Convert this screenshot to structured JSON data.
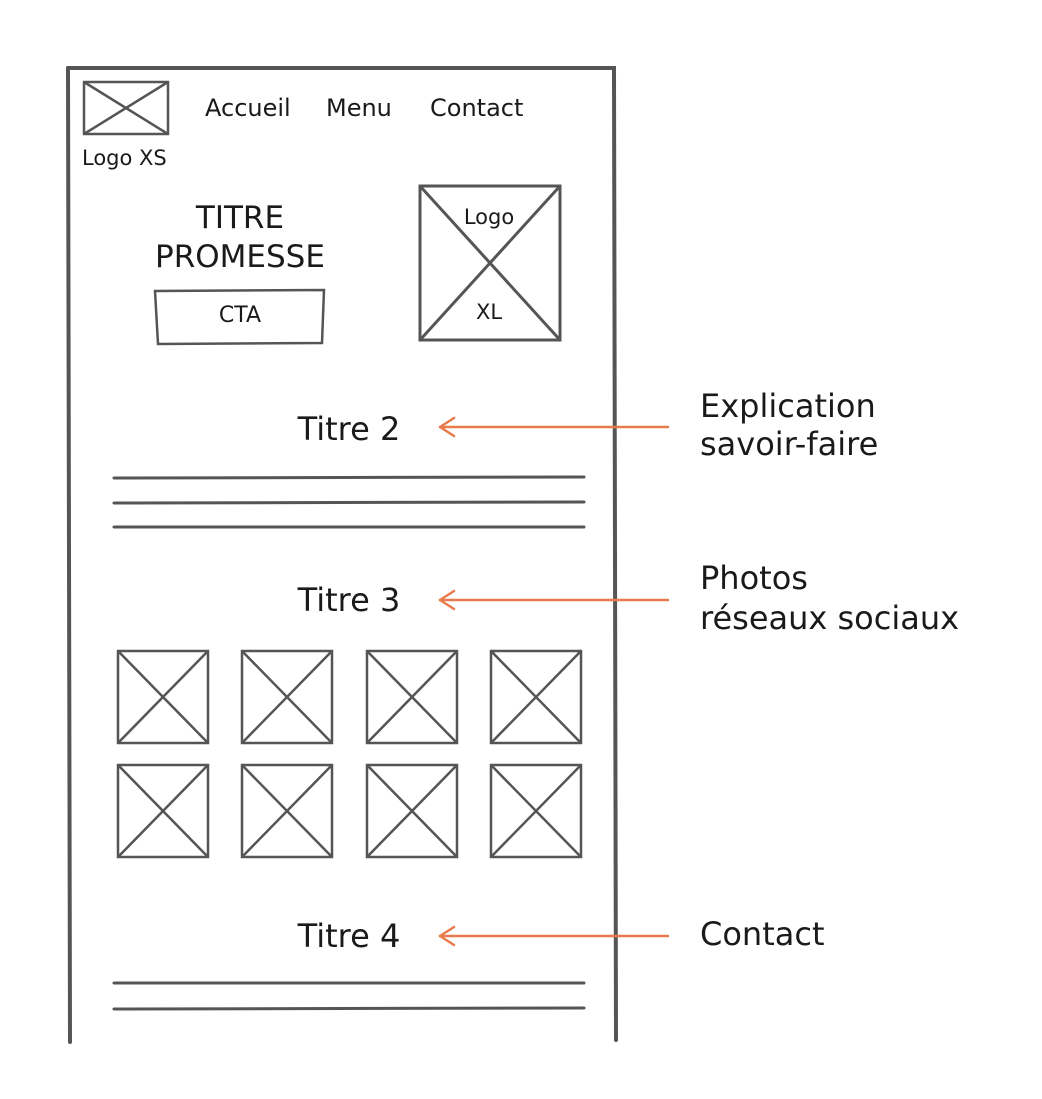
{
  "nav": {
    "logo_xs_label": "Logo XS",
    "items": [
      "Accueil",
      "Menu",
      "Contact"
    ]
  },
  "hero": {
    "title_line1": "TITRE",
    "title_line2": "PROMESSE",
    "cta_label": "CTA",
    "logo_xl_line1": "Logo",
    "logo_xl_line2": "XL"
  },
  "sections": [
    {
      "title": "Titre 2",
      "annotation_line1": "Explication",
      "annotation_line2": "savoir-faire"
    },
    {
      "title": "Titre 3",
      "annotation_line1": "Photos",
      "annotation_line2": "réseaux sociaux"
    },
    {
      "title": "Titre 4",
      "annotation_line1": "Contact",
      "annotation_line2": ""
    }
  ],
  "colors": {
    "stroke": "#555555",
    "arrow": "#e87a4c",
    "text": "#1a1a1a"
  }
}
